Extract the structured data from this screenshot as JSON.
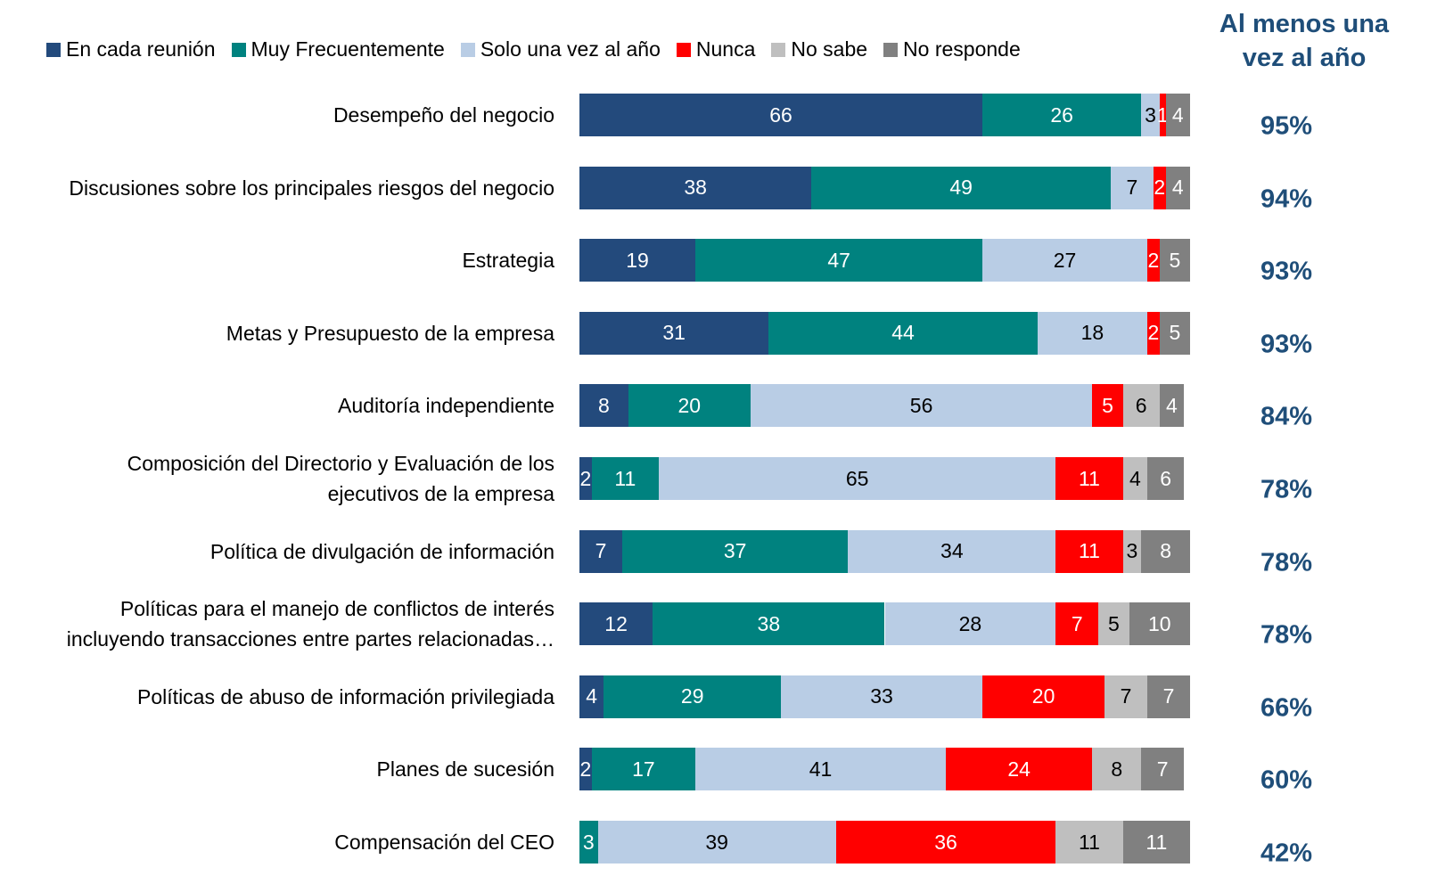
{
  "chart_data": {
    "type": "bar",
    "orientation": "horizontal",
    "stacked": true,
    "categories": [
      "Desempeño del negocio",
      "Discusiones sobre los principales riesgos del negocio",
      "Estrategia",
      "Metas y Presupuesto de la empresa",
      "Auditoría independiente",
      "Composición del Directorio y Evaluación de los\nejecutivos de la empresa",
      "Política de divulgación de información",
      "Políticas para el manejo de conflictos de interés\nincluyendo transacciones entre partes relacionadas…",
      "Políticas de abuso de información privilegiada",
      "Planes de sucesión",
      "Compensación del CEO"
    ],
    "xlim": [
      0,
      100
    ],
    "legend": "top",
    "series": [
      {
        "name": "En cada reunión",
        "color": "#234a7c",
        "label_color": "#ffffff",
        "values": [
          66,
          38,
          19,
          31,
          8,
          2,
          7,
          12,
          4,
          2,
          null
        ]
      },
      {
        "name": "Muy Frecuentemente",
        "color": "#00827f",
        "label_color": "#ffffff",
        "values": [
          26,
          49,
          47,
          44,
          20,
          11,
          37,
          38,
          29,
          17,
          3
        ]
      },
      {
        "name": "Solo una vez al año",
        "color": "#b9cde5",
        "label_color": "#000000",
        "values": [
          3,
          7,
          27,
          18,
          56,
          65,
          34,
          28,
          33,
          41,
          39
        ]
      },
      {
        "name": "Nunca",
        "color": "#ff0000",
        "label_color": "#ffffff",
        "values": [
          1,
          2,
          2,
          2,
          5,
          11,
          11,
          7,
          20,
          24,
          36
        ]
      },
      {
        "name": "No sabe",
        "color": "#bfbfbf",
        "label_color": "#000000",
        "values": [
          null,
          null,
          null,
          null,
          6,
          4,
          3,
          5,
          7,
          8,
          11
        ]
      },
      {
        "name": "No responde",
        "color": "#808080",
        "label_color": "#ffffff",
        "values": [
          4,
          4,
          5,
          5,
          4,
          6,
          8,
          10,
          7,
          7,
          11
        ]
      }
    ],
    "summary": {
      "title": "Al menos una\nvez al año",
      "color": "#1f4e79",
      "values": [
        95,
        94,
        93,
        93,
        84,
        78,
        78,
        78,
        66,
        60,
        42
      ],
      "value_labels": [
        "95%",
        "94%",
        "93%",
        "93%",
        "84%",
        "78%",
        "78%",
        "78%",
        "66%",
        "60%",
        "42%"
      ]
    }
  }
}
